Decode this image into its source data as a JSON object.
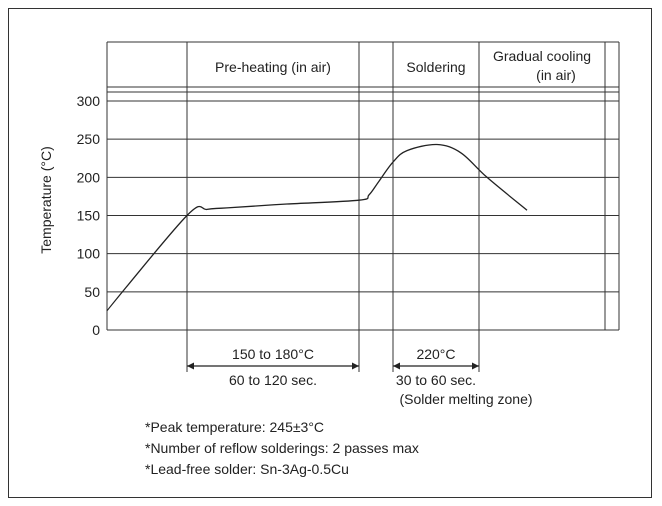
{
  "chart_data": {
    "type": "line",
    "ylabel": "Temperature (°C)",
    "ylim": [
      0,
      300
    ],
    "yticks": [
      0,
      50,
      100,
      150,
      200,
      250,
      300
    ],
    "grid": "horizontal",
    "x_units": "time (not labeled)",
    "series": [
      {
        "x": [
          0,
          80,
          100,
          120,
          180,
          252,
          262,
          272,
          286,
          300,
          330,
          354,
          380,
          420
        ],
        "y": [
          25,
          150,
          158,
          160,
          165,
          170,
          177,
          195,
          220,
          235,
          243,
          232,
          200,
          157
        ]
      }
    ],
    "zones": [
      {
        "label": "",
        "x_start": 0,
        "x_end": 80
      },
      {
        "label": "Pre-heating (in air)",
        "x_start": 80,
        "x_end": 252
      },
      {
        "label": "",
        "x_start": 252,
        "x_end": 286
      },
      {
        "label": "Soldering",
        "x_start": 286,
        "x_end": 372
      },
      {
        "label": "Gradual cooling\n(in air)",
        "x_start": 372,
        "x_end": 498
      }
    ],
    "dimensions": [
      {
        "from_x": 80,
        "to_x": 252,
        "label_top": "150 to 180°C",
        "label_bottom": "60 to 120 sec."
      },
      {
        "from_x": 286,
        "to_x": 372,
        "label_top": "220°C",
        "label_bottom": "30 to 60 sec.",
        "label_extra": "(Solder melting zone)"
      }
    ],
    "annotations": [
      "*Peak temperature: 245±3°C",
      "*Number of reflow solderings: 2 passes max",
      "*Lead-free solder: Sn-3Ag-0.5Cu"
    ]
  }
}
